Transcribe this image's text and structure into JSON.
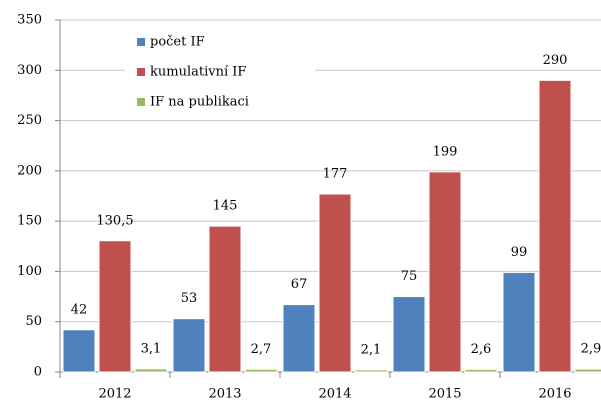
{
  "chart_data": {
    "type": "bar",
    "categories": [
      "2012",
      "2013",
      "2014",
      "2015",
      "2016"
    ],
    "series": [
      {
        "name": "počet IF",
        "color": "#4f81bd",
        "values": [
          42,
          53,
          67,
          75,
          99
        ]
      },
      {
        "name": "kumulativní IF",
        "color": "#c0504d",
        "values": [
          130.5,
          145,
          177,
          199,
          290
        ],
        "value_labels": [
          "130,5",
          "145",
          "177",
          "199",
          "290"
        ]
      },
      {
        "name": "IF na publikaci",
        "color": "#9bbb59",
        "values": [
          3.1,
          2.7,
          2.1,
          2.6,
          2.9
        ],
        "value_labels": [
          "3,1",
          "2,7",
          "2,1",
          "2,6",
          "2,9"
        ]
      }
    ],
    "ylim": [
      0,
      350
    ],
    "yticks": [
      0,
      50,
      100,
      150,
      200,
      250,
      300,
      350
    ],
    "grid": true,
    "legend": "top-left"
  }
}
